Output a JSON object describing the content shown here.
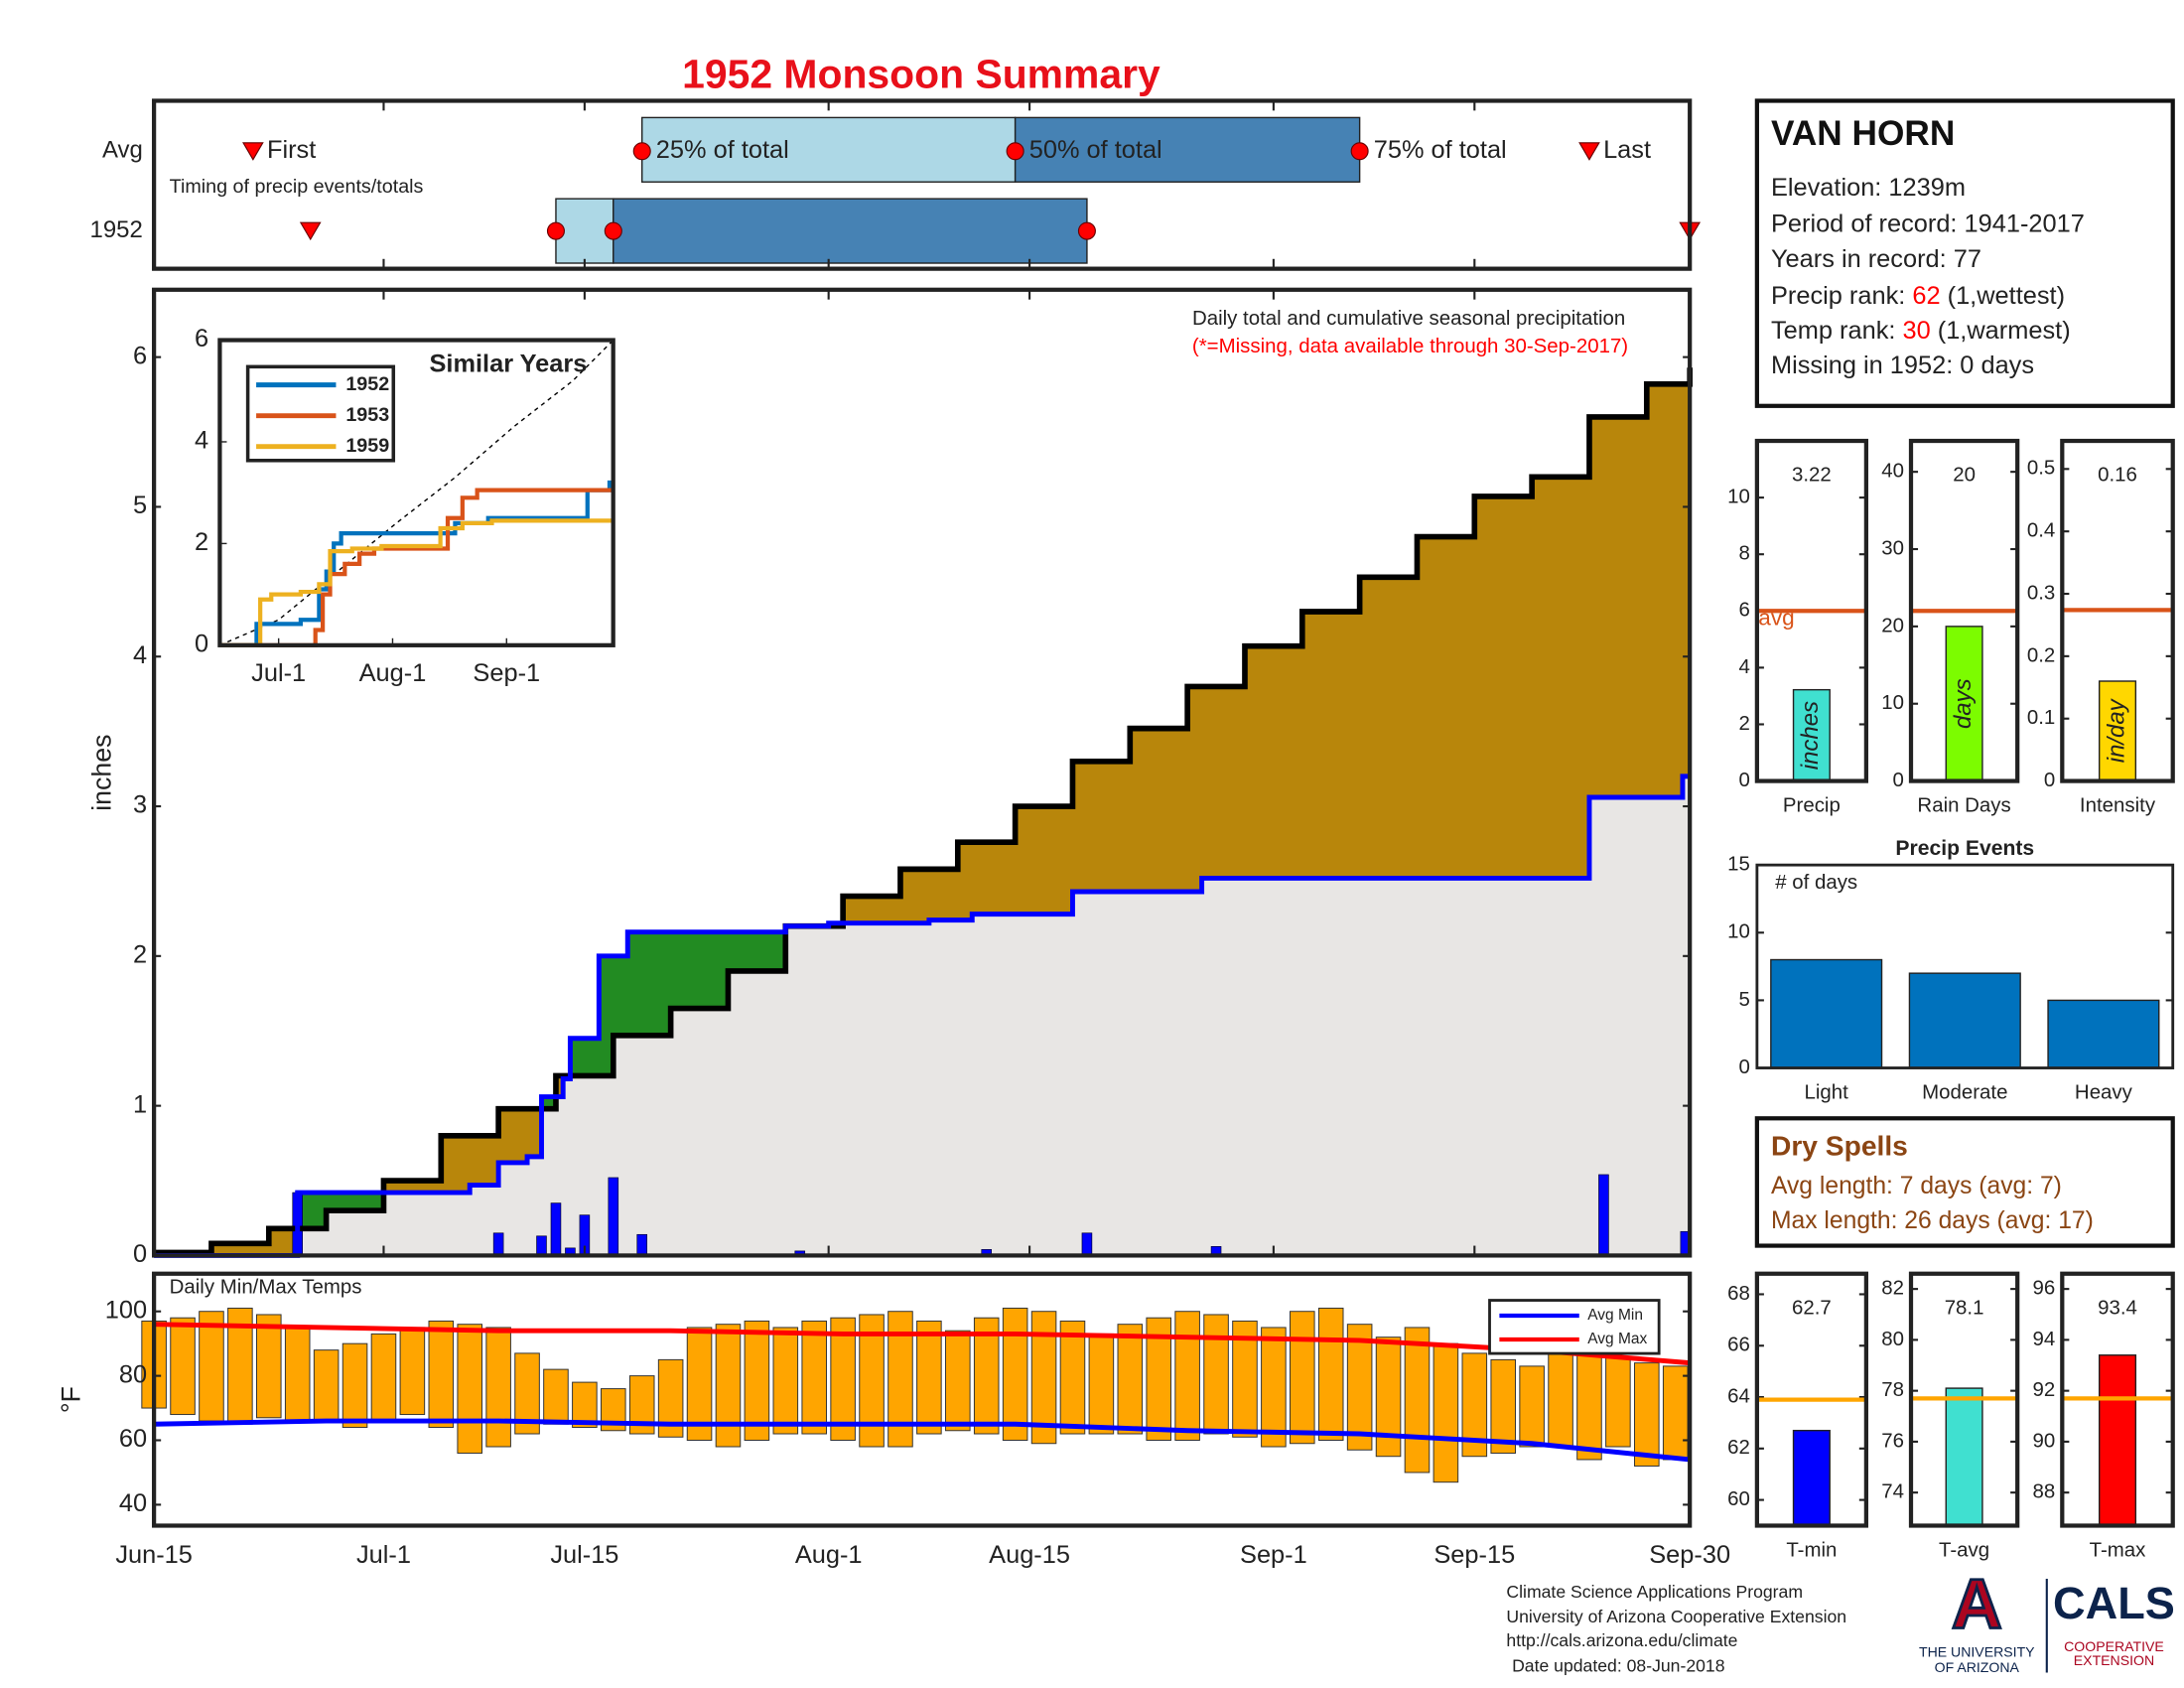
{
  "title": "1952 Monsoon Summary",
  "station": {
    "name": "VAN HORN",
    "lines": [
      "Elevation: 1239m",
      "Period of record: 1941-2017",
      "Years in record: 77"
    ],
    "ranks": [
      {
        "label": "Precip rank:",
        "value": 62,
        "note": "(1,wettest)"
      },
      {
        "label": "Temp rank:",
        "value": 30,
        "note": "(1,warmest)"
      }
    ],
    "missing": "Missing in 1952: 0 days",
    "rank_color": "#ff0000"
  },
  "dry_spells": {
    "title": "Dry Spells",
    "lines": [
      "Avg length: 7 days (avg: 7)",
      "Max length: 26 days (avg: 17)"
    ],
    "color": "#8b4513"
  },
  "footer": {
    "lines": [
      "Climate Science Applications Program",
      "University of Arizona Cooperative Extension",
      "http://cals.arizona.edu/climate",
      "Date updated: 08-Jun-2018"
    ]
  },
  "logo": {
    "letter": "A",
    "university": [
      "THE UNIVERSITY",
      "OF ARIZONA"
    ],
    "cals": "CALS",
    "extension": [
      "COOPERATIVE",
      "EXTENSION"
    ]
  },
  "chart_data": [
    {
      "type": "timing",
      "note": "Timing of precip events/totals",
      "xlim": [
        0,
        107
      ],
      "markers": [
        "First",
        "25% of total",
        "50% of total",
        "75% of total",
        "Last"
      ],
      "light_color": "#add8e6",
      "dark_color": "#4682b4",
      "marker_color": "#ff0000",
      "series": [
        {
          "name": "Avg",
          "first": 6.9,
          "p25": 34,
          "p50": 60,
          "p75": 84,
          "last": 100
        },
        {
          "name": "1952",
          "first": 10.9,
          "p25": 28,
          "p50": 32,
          "p75": 65,
          "last": 107
        }
      ]
    },
    {
      "type": "precip_area",
      "title": "Daily total and cumulative seasonal precipitation",
      "subtitle": "(*=Missing, data available through 30-Sep-2017)",
      "subtitle_color": "#ff0000",
      "ylabel": "inches",
      "xlim": [
        0,
        107
      ],
      "ylim": [
        0,
        6.45
      ],
      "yticks": [
        0,
        1,
        2,
        3,
        4,
        5,
        6
      ],
      "average": {
        "x": [
          0,
          4,
          8,
          12,
          16,
          20,
          24,
          28,
          32,
          36,
          40,
          44,
          48,
          52,
          56,
          60,
          64,
          68,
          72,
          76,
          80,
          84,
          88,
          92,
          96,
          100,
          104,
          107
        ],
        "values": [
          0.02,
          0.08,
          0.18,
          0.3,
          0.5,
          0.8,
          0.98,
          1.2,
          1.47,
          1.65,
          1.9,
          2.2,
          2.4,
          2.58,
          2.76,
          3.0,
          3.3,
          3.52,
          3.8,
          4.07,
          4.3,
          4.53,
          4.8,
          5.07,
          5.2,
          5.6,
          5.82,
          5.93
        ],
        "color": "#000000",
        "fill": "#b8860b"
      },
      "year": {
        "x": [
          0,
          10,
          22,
          24,
          26,
          27,
          28.5,
          29,
          31,
          33,
          44,
          47,
          54,
          57,
          64,
          73,
          100,
          106.5
        ],
        "values": [
          0,
          0.42,
          0.47,
          0.62,
          0.66,
          1.06,
          1.18,
          1.45,
          2.0,
          2.16,
          2.2,
          2.22,
          2.24,
          2.28,
          2.43,
          2.52,
          3.06,
          3.2
        ],
        "color": "#0000ff",
        "fill": "#228b22"
      },
      "overlap_fill": "#e8e6e4",
      "daily": {
        "x": [
          10,
          24,
          27,
          28,
          29,
          30,
          32,
          34,
          45,
          58,
          65,
          74,
          101,
          106.7
        ],
        "values": [
          0.42,
          0.15,
          0.13,
          0.35,
          0.05,
          0.27,
          0.52,
          0.14,
          0.03,
          0.04,
          0.15,
          0.06,
          0.54,
          0.16
        ],
        "color": "#0000ff"
      }
    },
    {
      "type": "line_step",
      "title": "Similar Years",
      "xlim": [
        0,
        107
      ],
      "ylim": [
        0,
        6
      ],
      "yticks": [
        0,
        2,
        4,
        6
      ],
      "xticks": [
        {
          "value": 16,
          "label": "Jul-1"
        },
        {
          "value": 47,
          "label": "Aug-1"
        },
        {
          "value": 78,
          "label": "Sep-1"
        }
      ],
      "series": [
        {
          "name": "1952",
          "color": "#0072bd",
          "x": [
            0,
            10,
            22,
            27,
            29,
            31,
            33,
            44,
            64,
            73,
            100,
            106
          ],
          "values": [
            0,
            0.42,
            0.5,
            1.1,
            1.45,
            2.0,
            2.2,
            2.2,
            2.4,
            2.5,
            3.05,
            3.2
          ]
        },
        {
          "name": "1953",
          "color": "#d95319",
          "x": [
            0,
            26,
            28,
            30,
            34,
            38,
            42,
            46,
            62,
            66,
            70,
            107
          ],
          "values": [
            0,
            0.3,
            1.0,
            1.4,
            1.6,
            1.8,
            1.9,
            1.9,
            2.5,
            2.9,
            3.05,
            3.05
          ]
        },
        {
          "name": "1959",
          "color": "#edb120",
          "x": [
            0,
            11,
            14,
            22,
            27,
            30,
            36,
            44,
            60,
            66,
            74,
            107
          ],
          "values": [
            0,
            0.9,
            1.0,
            1.05,
            1.2,
            1.85,
            1.9,
            1.95,
            2.3,
            2.4,
            2.45,
            2.45
          ]
        }
      ],
      "reference": {
        "x": [
          0,
          16,
          32,
          48,
          64,
          80,
          96,
          107
        ],
        "values": [
          0,
          0.5,
          1.45,
          2.4,
          3.3,
          4.3,
          5.2,
          6.0
        ],
        "color": "#000000"
      }
    },
    {
      "type": "summary_bar",
      "category": "Precip",
      "value": 3.22,
      "bar_label": "inches",
      "color": "#40e0d0",
      "average": 6.0,
      "average_label": "avg",
      "average_color": "#d95319",
      "ylim": [
        0,
        12
      ],
      "yticks": [
        0,
        2,
        4,
        6,
        8,
        10
      ]
    },
    {
      "type": "summary_bar",
      "category": "Rain Days",
      "value": 20,
      "bar_label": "days",
      "color": "#7cfc00",
      "average": 22,
      "average_color": "#d95319",
      "ylim": [
        0,
        44
      ],
      "yticks": [
        0,
        10,
        20,
        30,
        40
      ]
    },
    {
      "type": "summary_bar",
      "category": "Intensity",
      "value": 0.16,
      "bar_label": "in/day",
      "color": "#ffd700",
      "average": 0.274,
      "average_color": "#d95319",
      "ylim": [
        0,
        0.545
      ],
      "yticks": [
        0,
        0.1,
        0.2,
        0.3,
        0.4,
        0.5
      ]
    },
    {
      "type": "bar",
      "title": "Precip Events",
      "ylabel": "# of days",
      "categories": [
        "Light",
        "Moderate",
        "Heavy"
      ],
      "values": [
        8,
        7,
        5
      ],
      "color": "#0072bd",
      "ylim": [
        0,
        15
      ],
      "yticks": [
        0,
        5,
        10,
        15
      ]
    },
    {
      "type": "floating_bar",
      "title": "Daily Min/Max Temps",
      "ylabel": "°F",
      "xlim": [
        0,
        107
      ],
      "ylim": [
        33.5,
        111.7
      ],
      "yticks": [
        40,
        60,
        80,
        100
      ],
      "xticks": [
        {
          "value": 0,
          "label": "Jun-15"
        },
        {
          "value": 16,
          "label": "Jul-1"
        },
        {
          "value": 30,
          "label": "Jul-15"
        },
        {
          "value": 47,
          "label": "Aug-1"
        },
        {
          "value": 61,
          "label": "Aug-15"
        },
        {
          "value": 78,
          "label": "Sep-1"
        },
        {
          "value": 92,
          "label": "Sep-15"
        },
        {
          "value": 107,
          "label": "Sep-30"
        }
      ],
      "bar_color": "#ffa500",
      "legend": "upper right",
      "x": [
        0,
        2,
        4,
        6,
        8,
        10,
        12,
        14,
        16,
        18,
        20,
        22,
        24,
        26,
        28,
        30,
        32,
        34,
        36,
        38,
        40,
        42,
        44,
        46,
        48,
        50,
        52,
        54,
        56,
        58,
        60,
        62,
        64,
        66,
        68,
        70,
        72,
        74,
        76,
        78,
        80,
        82,
        84,
        86,
        88,
        90,
        92,
        94,
        96,
        98,
        100,
        102,
        104,
        106
      ],
      "max": [
        97,
        98,
        100,
        101,
        99,
        95,
        88,
        90,
        93,
        95,
        97,
        96,
        95,
        87,
        82,
        78,
        76,
        80,
        85,
        95,
        96,
        97,
        95,
        97,
        98,
        99,
        100,
        97,
        94,
        98,
        101,
        100,
        97,
        93,
        96,
        98,
        100,
        99,
        97,
        95,
        100,
        101,
        96,
        92,
        95,
        90,
        87,
        85,
        83,
        88,
        91,
        86,
        84,
        83
      ],
      "min": [
        70,
        68,
        66,
        65,
        67,
        66,
        66,
        64,
        66,
        68,
        64,
        56,
        58,
        62,
        65,
        64,
        63,
        62,
        61,
        60,
        58,
        60,
        62,
        62,
        60,
        58,
        58,
        62,
        63,
        62,
        60,
        59,
        62,
        62,
        62,
        60,
        60,
        62,
        61,
        58,
        59,
        60,
        57,
        55,
        50,
        47,
        55,
        56,
        58,
        58,
        54,
        58,
        52,
        54
      ],
      "series": [
        {
          "name": "Avg Min",
          "color": "#0000ff",
          "x": [
            0,
            12,
            24,
            36,
            48,
            60,
            72,
            84,
            96,
            107
          ],
          "values": [
            65,
            66,
            66,
            65,
            65,
            65,
            63,
            62,
            59,
            54
          ]
        },
        {
          "name": "Avg Max",
          "color": "#ff0000",
          "x": [
            0,
            12,
            24,
            36,
            48,
            60,
            72,
            84,
            96,
            107
          ],
          "values": [
            96,
            95,
            94,
            94,
            93,
            93,
            92,
            91,
            88,
            84
          ]
        }
      ]
    },
    {
      "type": "summary_bar",
      "category": "T-min",
      "value": 62.7,
      "color": "#0000ff",
      "average": 63.9,
      "average_color": "#ffa500",
      "ylim": [
        59,
        68.8
      ],
      "yticks": [
        60,
        62,
        64,
        66,
        68
      ]
    },
    {
      "type": "summary_bar",
      "category": "T-avg",
      "value": 78.1,
      "color": "#40e0d0",
      "average": 77.7,
      "average_color": "#ffa500",
      "ylim": [
        72.7,
        82.6
      ],
      "yticks": [
        74,
        76,
        78,
        80,
        82
      ]
    },
    {
      "type": "summary_bar",
      "category": "T-max",
      "value": 93.4,
      "color": "#ff0000",
      "average": 91.7,
      "average_color": "#ffa500",
      "ylim": [
        86.7,
        96.6
      ],
      "yticks": [
        88,
        90,
        92,
        94,
        96
      ]
    }
  ]
}
